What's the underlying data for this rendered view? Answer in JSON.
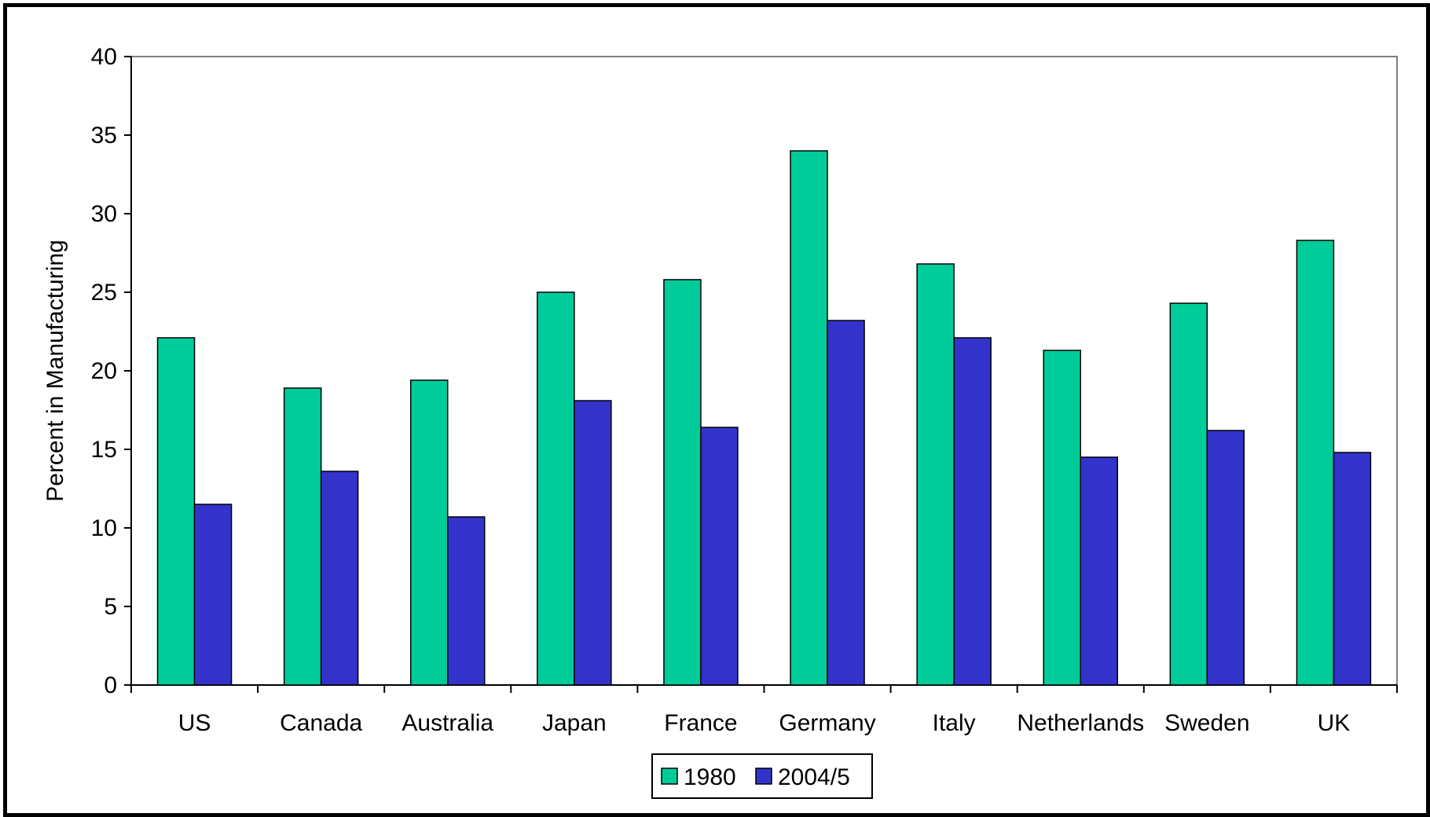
{
  "chart_data": {
    "type": "bar",
    "title": "",
    "xlabel": "",
    "ylabel": "Percent in Manufacturing",
    "ylim": [
      0,
      40
    ],
    "yticks": [
      0,
      5,
      10,
      15,
      20,
      25,
      30,
      35,
      40
    ],
    "categories": [
      "US",
      "Canada",
      "Australia",
      "Japan",
      "France",
      "Germany",
      "Italy",
      "Netherlands",
      "Sweden",
      "UK"
    ],
    "series": [
      {
        "name": "1980",
        "color": "#00CC99",
        "values": [
          22.1,
          18.9,
          19.4,
          25.0,
          25.8,
          34.0,
          26.8,
          21.3,
          24.3,
          28.3
        ]
      },
      {
        "name": "2004/5",
        "color": "#3333CC",
        "values": [
          11.5,
          13.6,
          10.7,
          18.1,
          16.4,
          23.2,
          22.1,
          14.5,
          16.2,
          14.8
        ]
      }
    ],
    "grid": false,
    "legend_position": "bottom-center"
  }
}
